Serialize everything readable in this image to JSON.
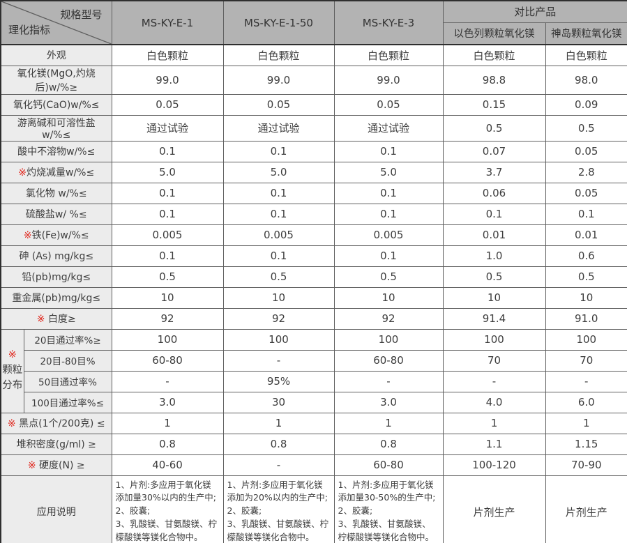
{
  "colors": {
    "header_bg": "#b3b3b3",
    "label_bg": "#ececec",
    "border": "#5f5f5f",
    "outer_border": "#2f2f2f",
    "text": "#3d3d3d",
    "star_red": "#e0261c"
  },
  "chart_data": {
    "type": "table",
    "corner": {
      "top_right": "规格型号",
      "bottom_left": "理化指标"
    },
    "product_columns": [
      "MS-KY-E-1",
      "MS-KY-E-1-50",
      "MS-KY-E-3"
    ],
    "comparison_group_label": "对比产品",
    "comparison_columns": [
      "以色列颗粒氧化镁",
      "神岛颗粒氧化镁"
    ],
    "rows_top": [
      {
        "star": "",
        "label": "外观",
        "values": [
          "白色颗粒",
          "白色颗粒",
          "白色颗粒",
          "白色颗粒",
          "白色颗粒"
        ]
      },
      {
        "star": "",
        "label": "氧化镁(MgO,灼烧后)w/%≥",
        "values": [
          "99.0",
          "99.0",
          "99.0",
          "98.8",
          "98.0"
        ]
      },
      {
        "star": "",
        "label": "氧化钙(CaO)w/%≤",
        "values": [
          "0.05",
          "0.05",
          "0.05",
          "0.15",
          "0.09"
        ]
      },
      {
        "star": "",
        "label": "游离碱和可溶性盐w/%≤",
        "values": [
          "通过试验",
          "通过试验",
          "通过试验",
          "0.5",
          "0.5"
        ]
      },
      {
        "star": "",
        "label": "酸中不溶物w/%≤",
        "values": [
          "0.1",
          "0.1",
          "0.1",
          "0.07",
          "0.05"
        ]
      },
      {
        "star": "※",
        "label": "灼烧减量w/%≤",
        "values": [
          "5.0",
          "5.0",
          "5.0",
          "3.7",
          "2.8"
        ]
      },
      {
        "star": "",
        "label": "氯化物 w/%≤",
        "values": [
          "0.1",
          "0.1",
          "0.1",
          "0.06",
          "0.05"
        ]
      },
      {
        "star": "",
        "label": "硫酸盐w/ %≤",
        "values": [
          "0.1",
          "0.1",
          "0.1",
          "0.1",
          "0.1"
        ]
      },
      {
        "star": "※",
        "label": "铁(Fe)w/%≤",
        "values": [
          "0.005",
          "0.005",
          "0.005",
          "0.01",
          "0.01"
        ]
      },
      {
        "star": "",
        "label": "砷 (As) mg/kg≤",
        "values": [
          "0.1",
          "0.1",
          "0.1",
          "1.0",
          "0.6"
        ]
      },
      {
        "star": "",
        "label": "铅(pb)mg/kg≤",
        "values": [
          "0.5",
          "0.5",
          "0.5",
          "0.5",
          "0.5"
        ]
      },
      {
        "star": "",
        "label": "重金属(pb)mg/kg≤",
        "values": [
          "10",
          "10",
          "10",
          "10",
          "10"
        ]
      },
      {
        "star": "※ ",
        "label": "白度≥",
        "values": [
          "92",
          "92",
          "92",
          "91.4",
          "91.0"
        ]
      }
    ],
    "granule_section": {
      "star": "※",
      "label_lines": [
        "颗粒",
        "分布"
      ],
      "rows": [
        {
          "label": "20目通过率%≥",
          "values": [
            "100",
            "100",
            "100",
            "100",
            "100"
          ]
        },
        {
          "label": "20目-80目%",
          "values": [
            "60-80",
            "-",
            "60-80",
            "70",
            "70"
          ]
        },
        {
          "label": "50目通过率%",
          "values": [
            "-",
            "95%",
            "-",
            "-",
            "-"
          ]
        },
        {
          "label": "100目通过率%≤",
          "values": [
            "3.0",
            "30",
            "3.0",
            "4.0",
            "6.0"
          ]
        }
      ]
    },
    "rows_bottom": [
      {
        "star": "※ ",
        "label": "黑点(1个/200克) ≤",
        "values": [
          "1",
          "1",
          "1",
          "1",
          "1"
        ]
      },
      {
        "star": "",
        "label": "堆积密度(g/ml) ≥",
        "values": [
          "0.8",
          "0.8",
          "0.8",
          "1.1",
          "1.15"
        ]
      },
      {
        "star": "※ ",
        "label": "硬度(N) ≥",
        "values": [
          "40-60",
          "-",
          "60-80",
          "100-120",
          "70-90"
        ]
      }
    ],
    "application_row": {
      "label": "应用说明",
      "values": [
        "1、片剂:多应用于氧化镁添加量30%以内的生产中;\n2、胶囊;\n3、乳酸镁、甘氨酸镁、柠檬酸镁等镁化合物中。",
        "1、片剂:多应用于氧化镁添加为20%以内的生产中;\n2、胶囊;\n3、乳酸镁、甘氨酸镁、柠檬酸镁等镁化合物中。",
        "1、片剂:多应用于氧化镁添加量30-50%的生产中;\n2、胶囊;\n3、乳酸镁、甘氨酸镁、柠檬酸镁等镁化合物中。",
        "片剂生产",
        "片剂生产"
      ]
    }
  }
}
